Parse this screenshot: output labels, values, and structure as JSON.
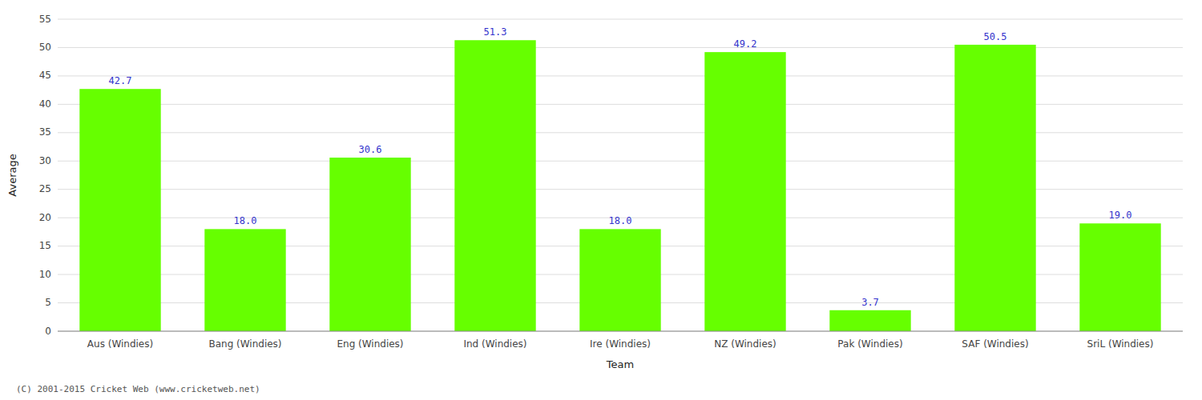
{
  "chart_data": {
    "type": "bar",
    "categories": [
      "Aus (Windies)",
      "Bang (Windies)",
      "Eng (Windies)",
      "Ind (Windies)",
      "Ire (Windies)",
      "NZ (Windies)",
      "Pak (Windies)",
      "SAF (Windies)",
      "SriL (Windies)"
    ],
    "values": [
      42.7,
      18.0,
      30.6,
      51.3,
      18.0,
      49.2,
      3.7,
      50.5,
      19.0
    ],
    "value_labels": [
      "42.7",
      "18.0",
      "30.6",
      "51.3",
      "18.0",
      "49.2",
      "3.7",
      "50.5",
      "19.0"
    ],
    "data_labels": true,
    "color": "#66FF00",
    "xlabel": "Team",
    "ylabel": "Average",
    "ylim": [
      0,
      55
    ],
    "yticks": [
      0,
      5,
      10,
      15,
      20,
      25,
      30,
      35,
      40,
      45,
      50,
      55
    ],
    "grid": true,
    "annotations": [
      "(C) 2001-2015 Cricket Web (www.cricketweb.net)"
    ]
  }
}
